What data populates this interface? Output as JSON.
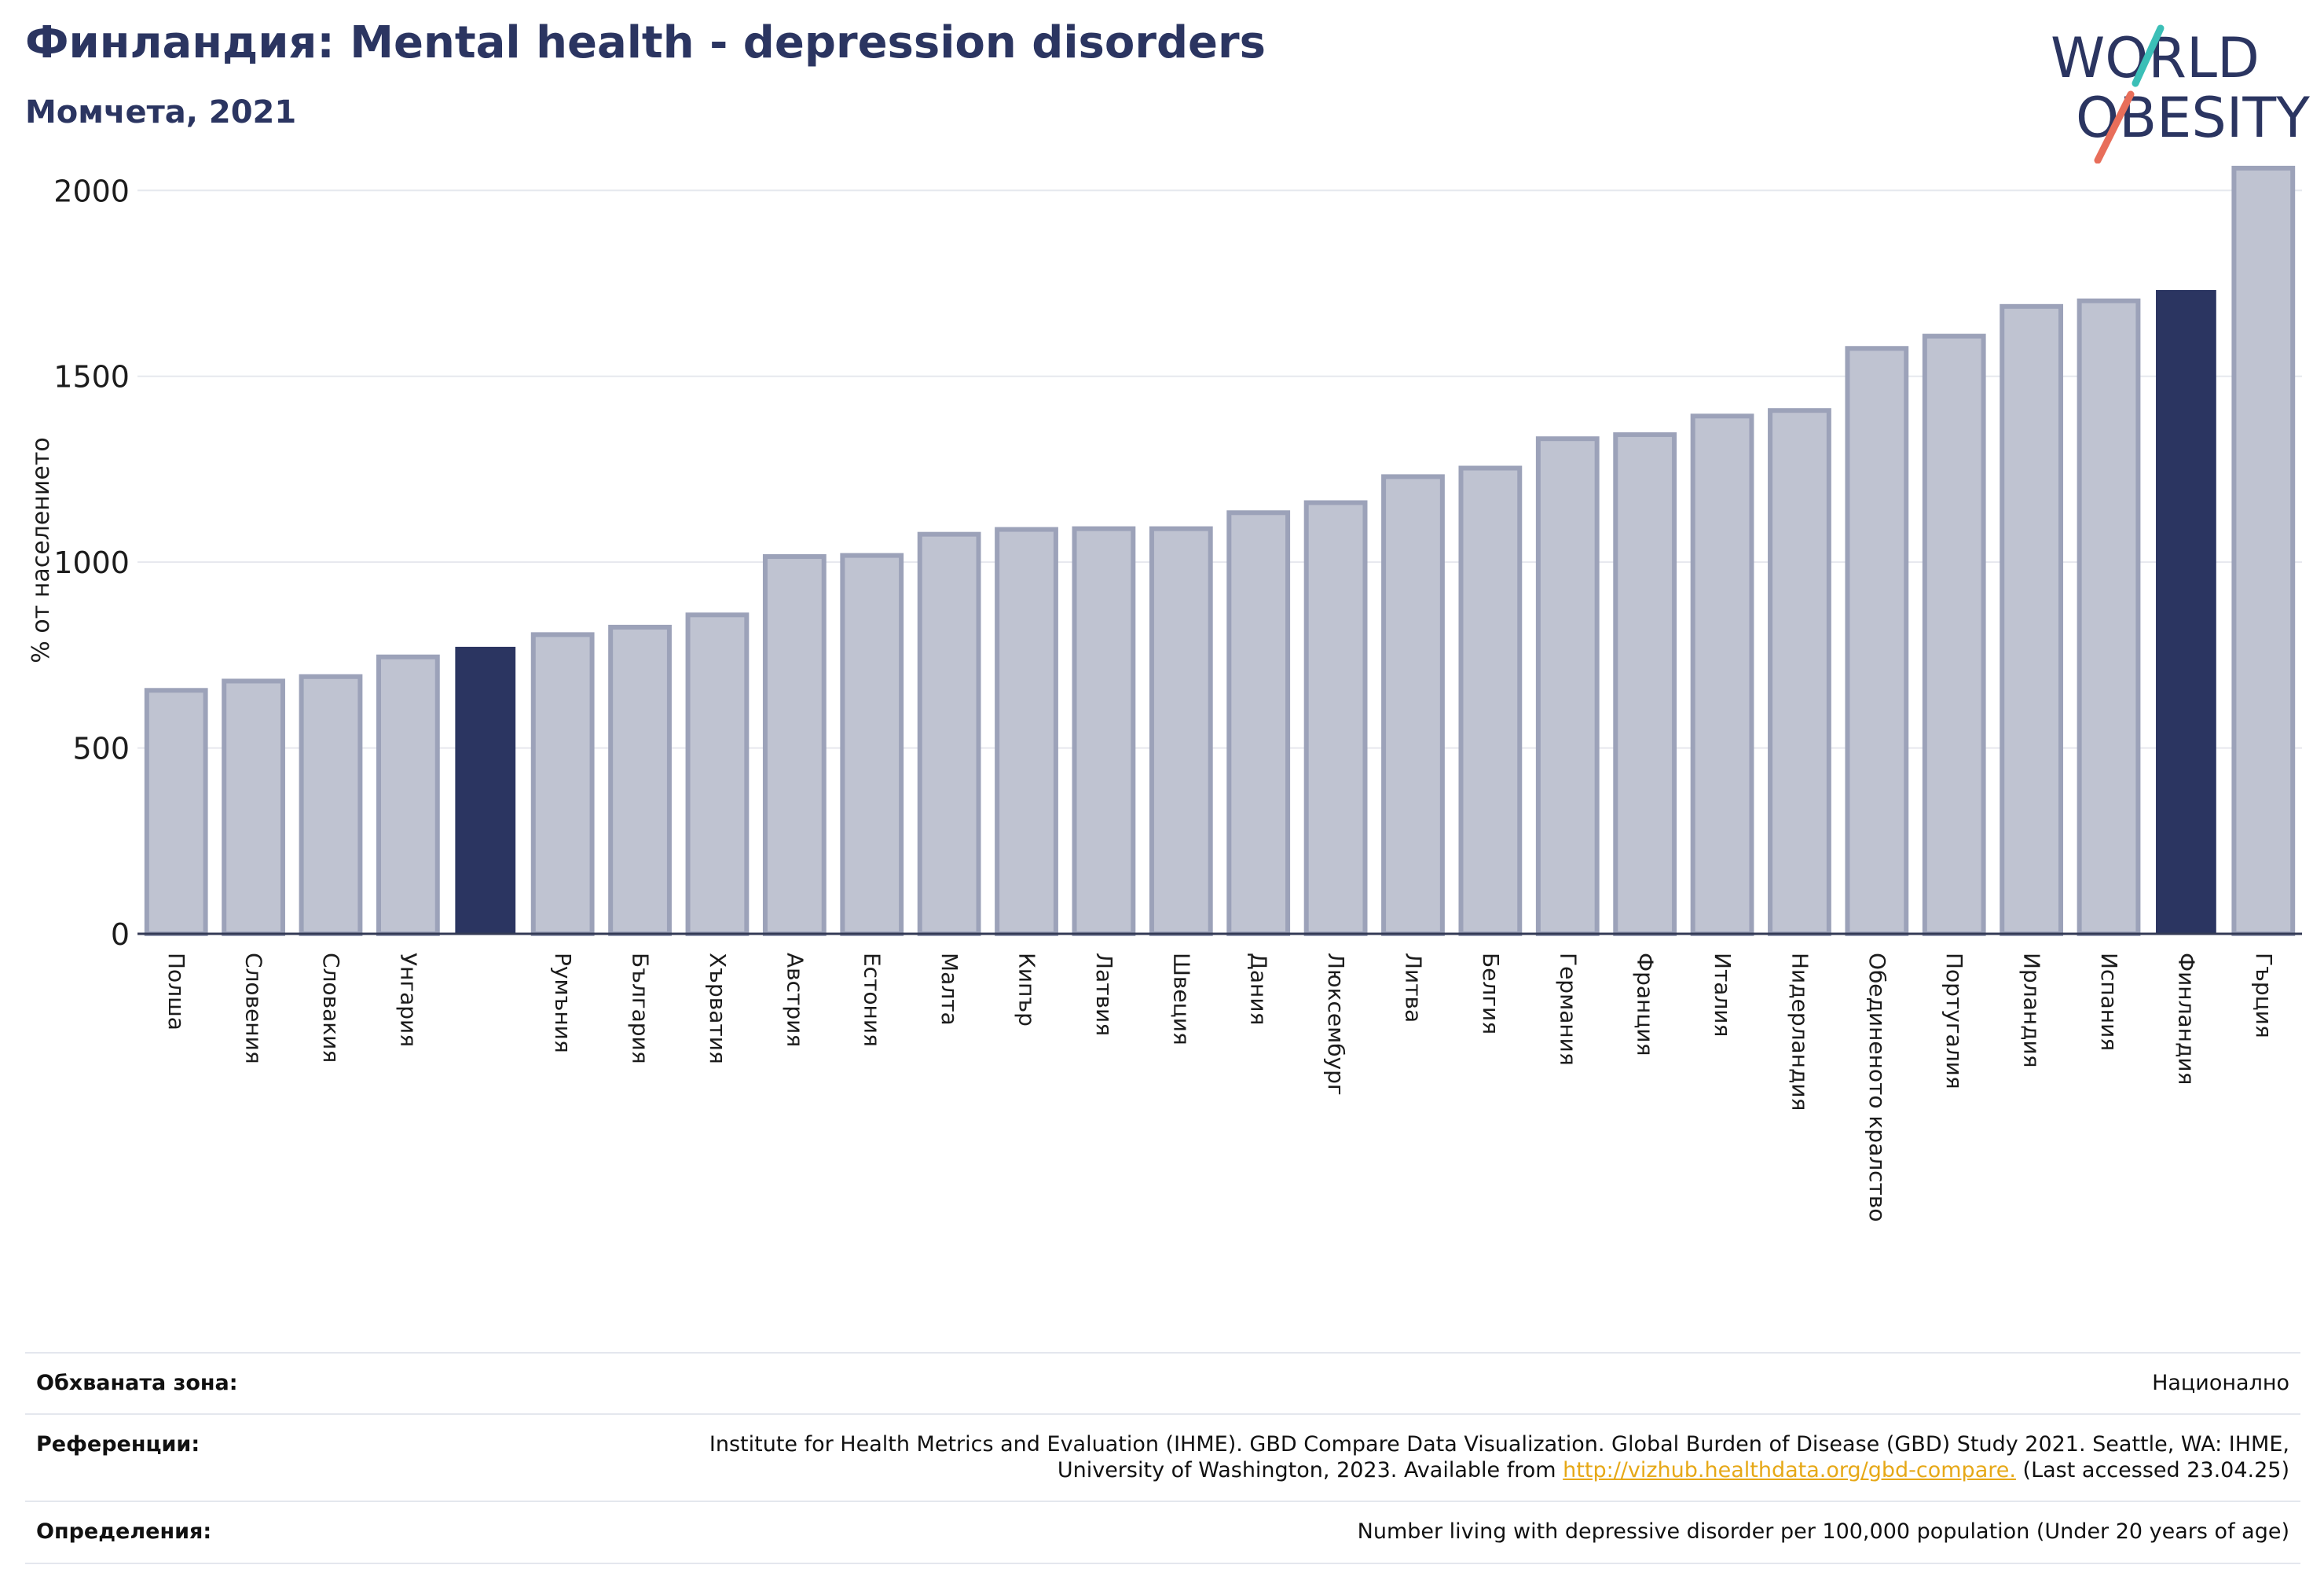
{
  "header": {
    "title": "Финландия: Mental health - depression disorders",
    "subtitle": "Момчета, 2021"
  },
  "logo": {
    "line1": "WORLD",
    "line2": "OBESITY"
  },
  "colors": {
    "highlight": "#2b3561",
    "bar_fill": "#bfc3d1",
    "bar_stroke": "#9ca2b9",
    "grid": "#e6e8ee",
    "logo_text": "#2b3561",
    "logo_teal": "#3bbfb7",
    "logo_coral": "#e86e5a"
  },
  "chart_data": {
    "type": "bar",
    "ylabel": "% от населението",
    "ylim": [
      0,
      2100
    ],
    "yticks": [
      0,
      500,
      1000,
      1500,
      2000
    ],
    "grid": true,
    "categories": [
      "Полша",
      "Словения",
      "Словакия",
      "Унгария",
      "",
      "Румъния",
      "България",
      "Хърватия",
      "Австрия",
      "Естония",
      "Малта",
      "Кипър",
      "Латвия",
      "Швеция",
      "Дания",
      "Люксембург",
      "Литва",
      "Белгия",
      "Германия",
      "Франция",
      "Италия",
      "Нидерландия",
      "Обединеното кралство",
      "Португалия",
      "Ирландия",
      "Испания",
      "Финландия",
      "Гърция"
    ],
    "values": [
      655,
      680,
      692,
      745,
      770,
      805,
      825,
      858,
      1015,
      1018,
      1075,
      1088,
      1090,
      1090,
      1133,
      1160,
      1230,
      1253,
      1332,
      1343,
      1393,
      1408,
      1575,
      1608,
      1688,
      1703,
      1730,
      2060
    ],
    "highlight": [
      4,
      26
    ]
  },
  "info": {
    "coverage_label": "Обхваната зона:",
    "coverage_value": "Национално",
    "references_label": "Референции:",
    "references_text": "Institute for Health Metrics and Evaluation (IHME). GBD Compare Data Visualization. Global Burden of Disease (GBD) Study 2021. Seattle, WA: IHME, University of Washington, 2023. Available from",
    "references_link": "http://vizhub.healthdata.org/gbd-compare.",
    "references_tail": "(Last accessed 23.04.25)",
    "definitions_label": "Определения:",
    "definitions_value": "Number living with depressive disorder per 100,000 population (Under 20 years of age)"
  }
}
